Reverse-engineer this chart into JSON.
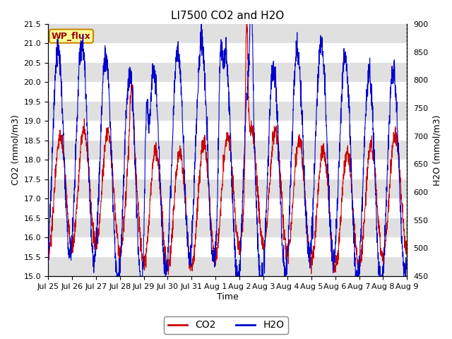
{
  "title": "LI7500 CO2 and H2O",
  "xlabel": "Time",
  "ylabel_left": "CO2 (mmol/m3)",
  "ylabel_right": "H2O (mmol/m3)",
  "ylim_left": [
    15.0,
    21.5
  ],
  "ylim_right": [
    450,
    900
  ],
  "co2_color": "#cc0000",
  "h2o_color": "#0000cc",
  "background_color": "#ffffff",
  "plot_bg_color": "#e0e0e0",
  "label_box_text": "WP_flux",
  "label_box_bg": "#ffff99",
  "label_box_border": "#cc8800",
  "label_box_text_color": "#990000",
  "x_tick_labels": [
    "Jul 25",
    "Jul 26",
    "Jul 27",
    "Jul 28",
    "Jul 29",
    "Jul 30",
    "Jul 31",
    "Aug 1",
    "Aug 2",
    "Aug 3",
    "Aug 4",
    "Aug 5",
    "Aug 6",
    "Aug 7",
    "Aug 8",
    "Aug 9"
  ],
  "title_fontsize": 11,
  "axis_label_fontsize": 9,
  "tick_fontsize": 8,
  "legend_fontsize": 10,
  "annotation_fontsize": 9,
  "figsize": [
    6.4,
    4.8
  ],
  "dpi": 100
}
